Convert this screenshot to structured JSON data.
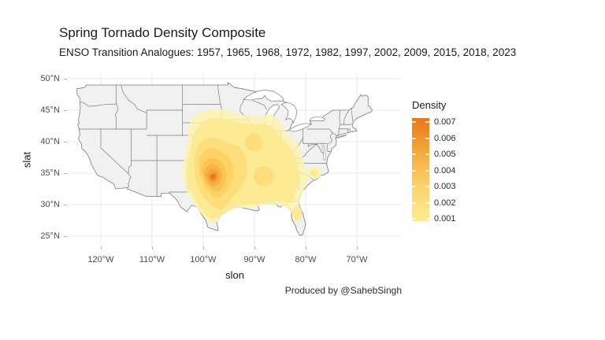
{
  "figure": {
    "title": "Spring Tornado Density Composite",
    "subtitle": "ENSO Transition Analogues: 1957, 1965, 1968, 1972, 1982, 1997, 2002, 2009, 2015, 2018, 2023",
    "caption": "Produced by @SahebSingh"
  },
  "axes": {
    "x": {
      "label": "slon",
      "ticks": [
        "120°W",
        "110°W",
        "100°W",
        "90°W",
        "80°W",
        "70°W"
      ]
    },
    "y": {
      "label": "slat",
      "ticks": [
        "50°N",
        "45°N",
        "40°N",
        "35°N",
        "30°N",
        "25°N"
      ]
    }
  },
  "legend": {
    "title": "Density",
    "labels": [
      "0.007",
      "0.006",
      "0.005",
      "0.004",
      "0.003",
      "0.002",
      "0.001"
    ],
    "gradient_top_to_bottom": [
      "#E8761E",
      "#EF9129",
      "#F5A93C",
      "#F9BE55",
      "#FCD26D",
      "#FDE082",
      "#FDEB8F"
    ]
  },
  "colors": {
    "land": "#f1f1f1",
    "state_border": "#7b7b7b",
    "water": "#ffffff",
    "gridline": "#e9e9e9",
    "band_colors": [
      "#FEF2AE",
      "#FDE88C",
      "#FCDC74",
      "#FBCF60",
      "#F9C050",
      "#F6B042",
      "#F2A034",
      "#EE8F28",
      "#E97E1E",
      "#E06F15"
    ]
  },
  "chart_data": {
    "type": "heatmap",
    "subtype": "2d-kernel-density-contours-over-us-state-map",
    "title": "Spring Tornado Density Composite",
    "subtitle": "ENSO Transition Analogues: 1957, 1965, 1968, 1972, 1982, 1997, 2002, 2009, 2015, 2018, 2023",
    "caption": "Produced by @SahebSingh",
    "analogue_years": [
      1957,
      1965,
      1968,
      1972,
      1982,
      1997,
      2002,
      2009,
      2015,
      2018,
      2023
    ],
    "xlabel": "slon",
    "ylabel": "slat",
    "x_ticks_deg_lon": [
      -120,
      -110,
      -100,
      -90,
      -80,
      -70
    ],
    "y_ticks_deg_lat": [
      50,
      45,
      40,
      35,
      30,
      25
    ],
    "x_range_deg_lon": [
      -126.5,
      -61.2
    ],
    "y_range_deg_lat": [
      23.4,
      50.9
    ],
    "grid": true,
    "legend_position": "right",
    "legend": {
      "title": "Density",
      "breaks": [
        0.007,
        0.006,
        0.005,
        0.004,
        0.003,
        0.002,
        0.001
      ],
      "scale_top_color": "#E8761E",
      "scale_bottom_color": "#FDEB8F"
    },
    "density_surface": {
      "peak": {
        "slon": -98.1,
        "slat": 34.6,
        "density": 0.007
      },
      "contour_band_levels": [
        0.0005,
        0.001,
        0.0015,
        0.002,
        0.0025,
        0.003,
        0.004,
        0.005,
        0.006,
        0.007
      ],
      "secondary_maxima": [
        {
          "slon": -90.1,
          "slat": 39.9,
          "density": 0.0015,
          "note": "west-central Illinois bump"
        },
        {
          "slon": -88.2,
          "slat": 34.5,
          "density": 0.0015,
          "note": "NE Mississippi / NW Alabama bump"
        },
        {
          "slon": -81.6,
          "slat": 28.6,
          "density": 0.001,
          "note": "central Florida patch"
        },
        {
          "slon": -78.3,
          "slat": 35.1,
          "density": 0.001,
          "note": "detached coastal North Carolina patch"
        }
      ],
      "extent": {
        "west": -104.0,
        "east": -78.3,
        "south": 26.9,
        "north": 45.2
      },
      "description": "Concentric filled density contours centered on southwestern Oklahoma, spreading over the southern Plains, lower Mississippi Valley, Midwest, Southeast and Florida"
    },
    "basemap": "US lower-48 state boundaries, light gray fill"
  }
}
